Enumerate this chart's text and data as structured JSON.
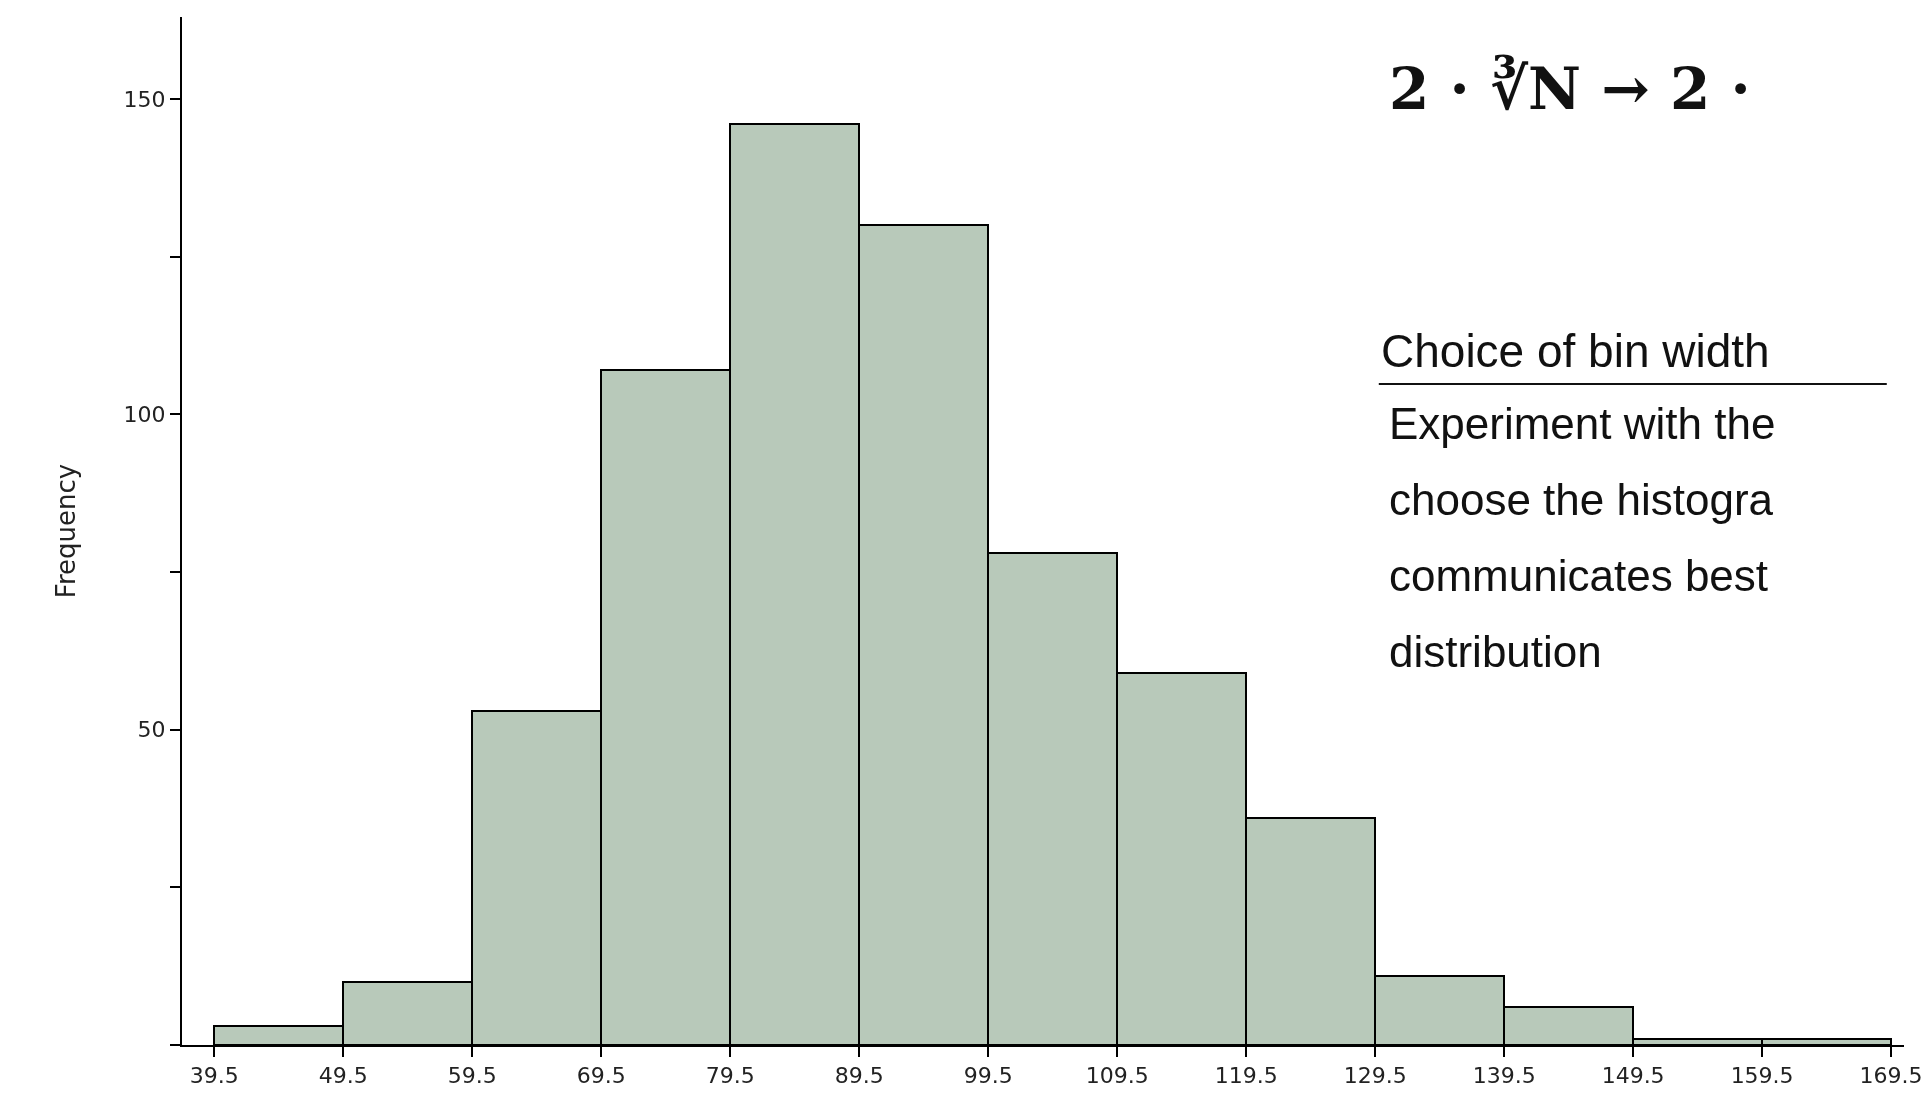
{
  "chart_data": {
    "type": "histogram",
    "ylabel": "Frequency",
    "bins": [
      39.5,
      49.5,
      59.5,
      69.5,
      79.5,
      89.5,
      99.5,
      109.5,
      119.5,
      129.5,
      139.5,
      149.5,
      159.5,
      169.5
    ],
    "values": [
      3,
      10,
      53,
      107,
      146,
      130,
      78,
      59,
      36,
      11,
      6,
      1,
      1
    ],
    "color": "#b8c9ba",
    "xlim": [
      37,
      170.5
    ],
    "xticks": [
      39.5,
      49.5,
      59.5,
      69.5,
      79.5,
      89.5,
      99.5,
      109.5,
      119.5,
      129.5,
      139.5,
      149.5,
      159.5,
      169.5
    ],
    "ylim": [
      0,
      163
    ],
    "yticks": [
      {
        "value": 0,
        "label": null
      },
      {
        "value": 25,
        "label": null
      },
      50,
      {
        "value": 75,
        "label": null
      },
      100,
      {
        "value": 125,
        "label": null
      },
      150
    ],
    "grid": false,
    "annotations": [
      "2 · ∛N → 2 ·",
      "Choice of bin width",
      "Experiment with the",
      "choose the histogra",
      "communicates best",
      "distribution"
    ]
  }
}
